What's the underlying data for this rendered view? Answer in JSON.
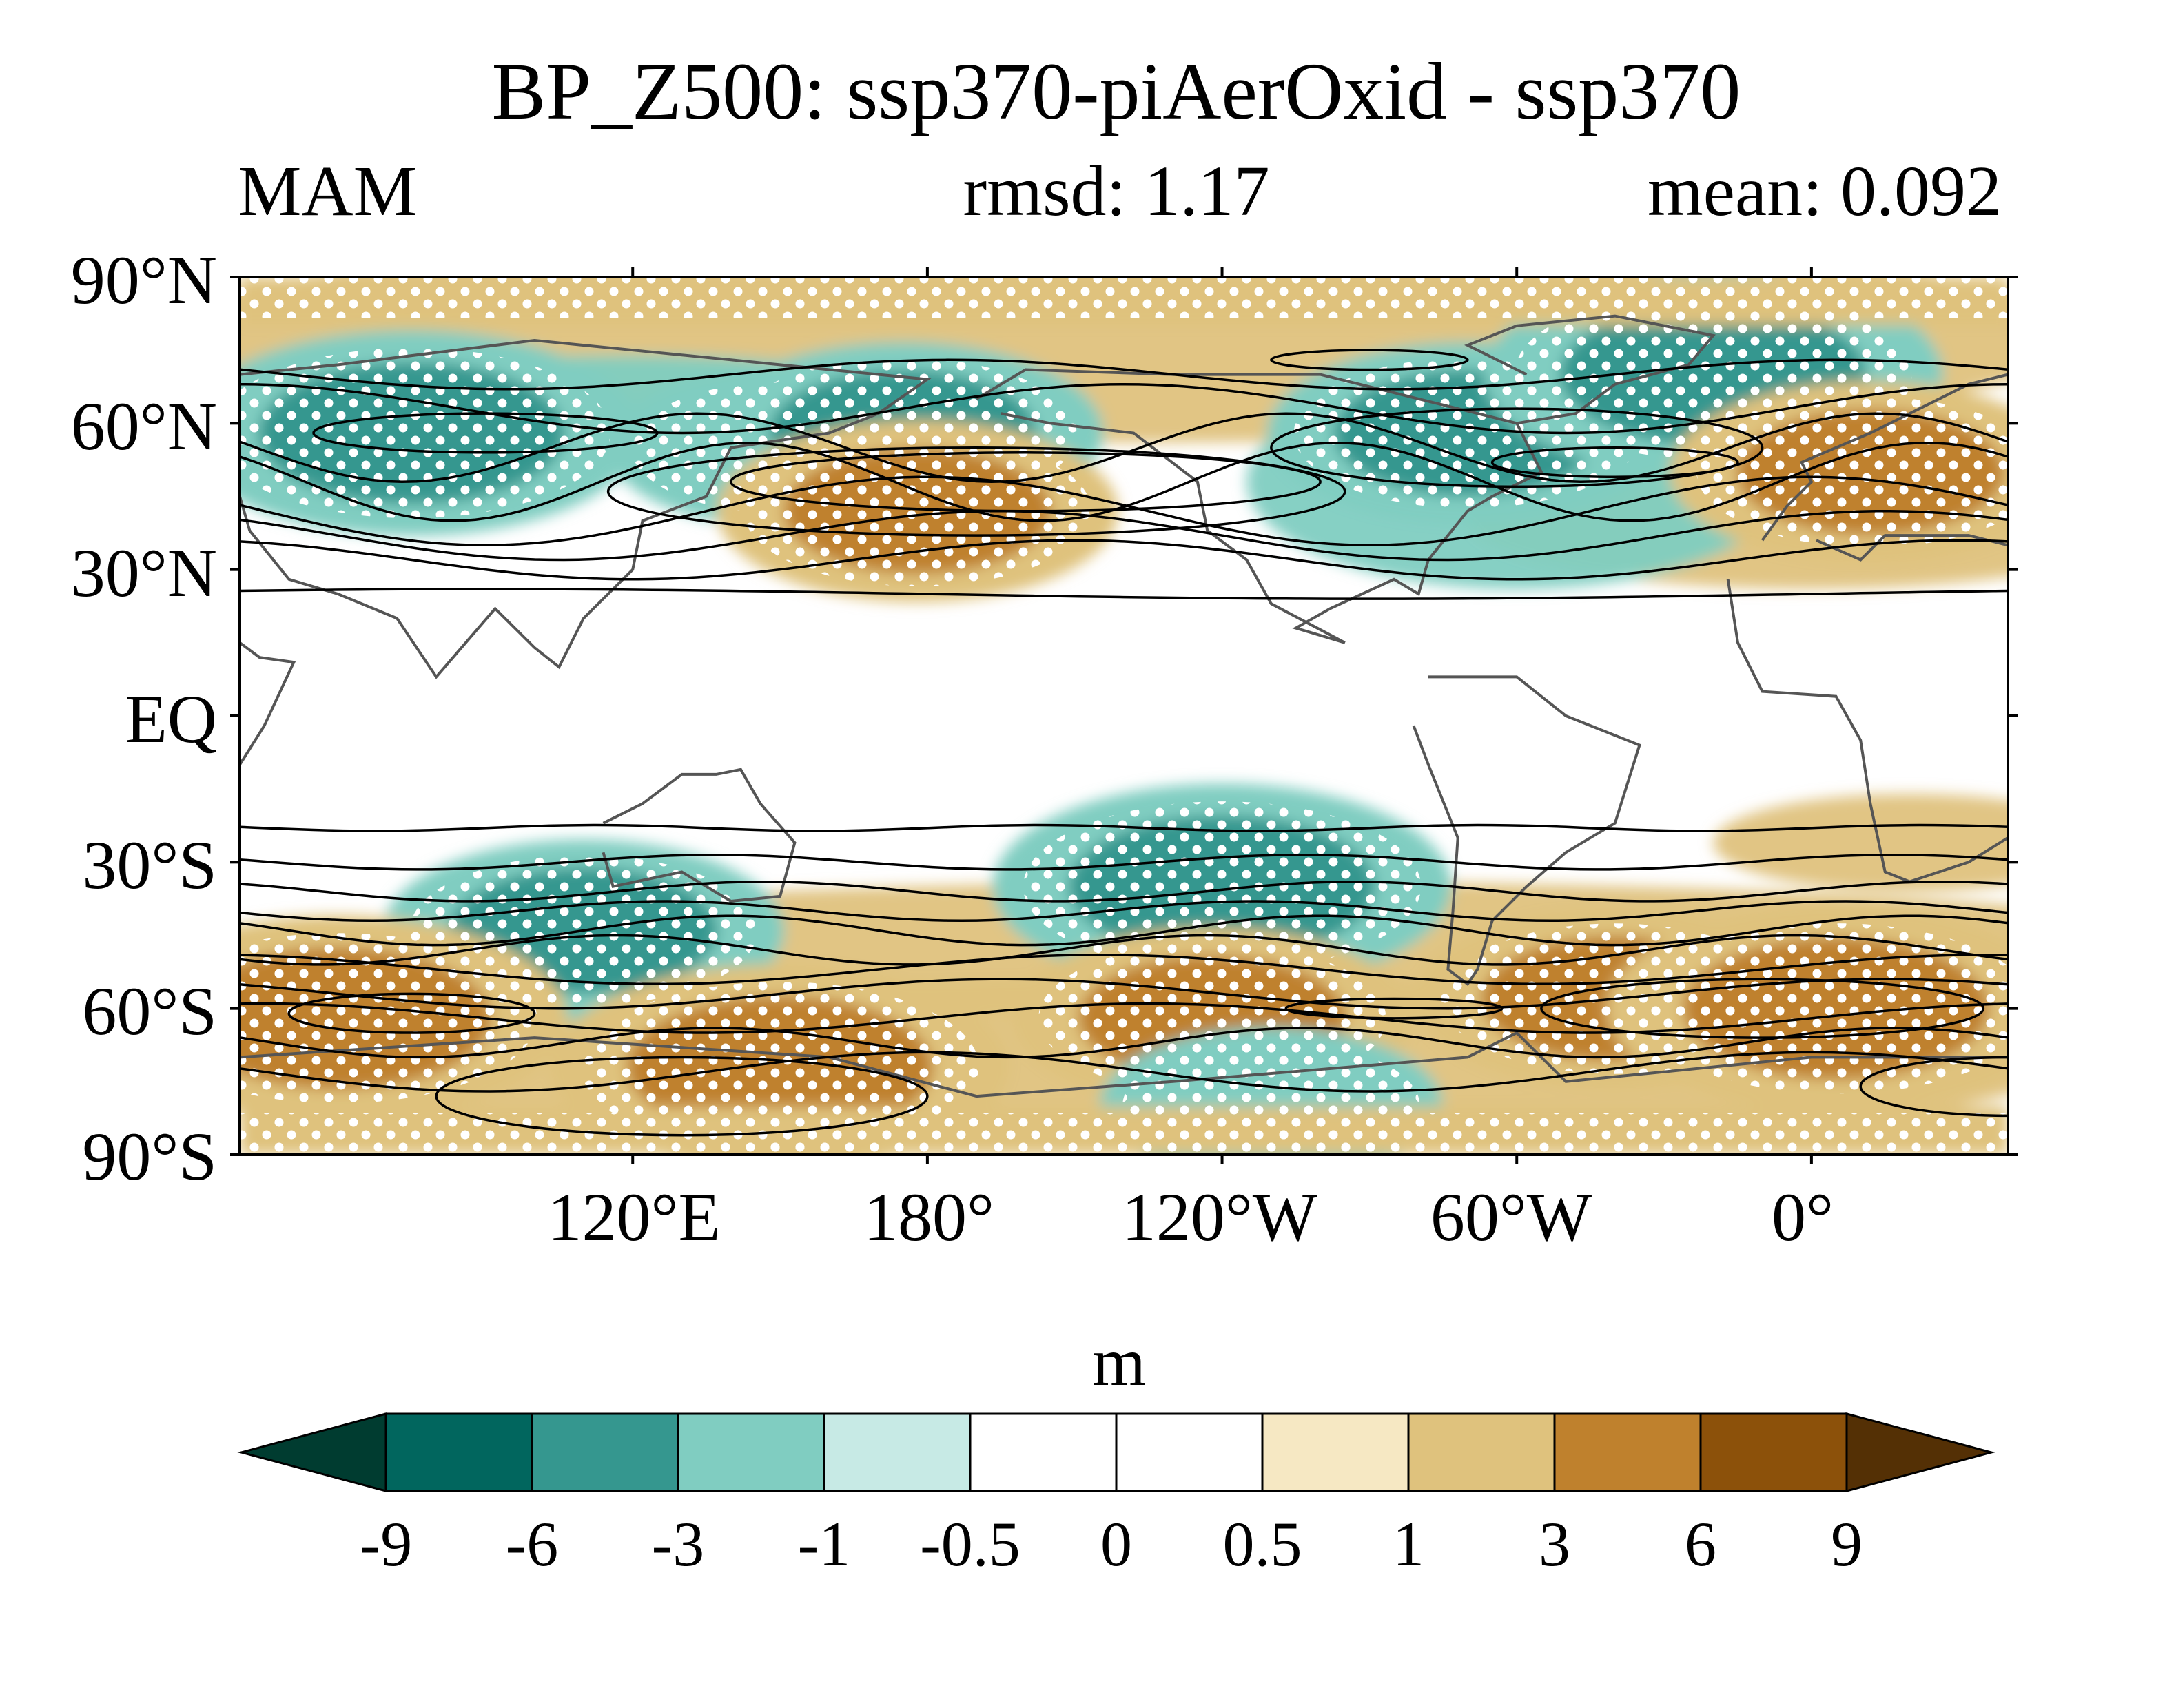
{
  "title": "BP_Z500: ssp370-piAerOxid - ssp370",
  "season": "MAM",
  "rmsd_label": "rmsd: 1.17",
  "mean_label": "mean: 0.092",
  "lat_labels": [
    "90°N",
    "60°N",
    "30°N",
    "EQ",
    "30°S",
    "60°S",
    "90°S"
  ],
  "lon_labels": [
    "120°E",
    "180°",
    "120°W",
    "60°W",
    "0°"
  ],
  "colorbar": {
    "unit": "m",
    "levels": [
      "-9",
      "-6",
      "-3",
      "-1",
      "-0.5",
      "0",
      "0.5",
      "1",
      "3",
      "6",
      "9"
    ],
    "colors": [
      "#003c30",
      "#01665e",
      "#35978f",
      "#80cdc1",
      "#c7eae5",
      "#ffffff",
      "#ffffff",
      "#f6e8c3",
      "#dfc27d",
      "#bf812d",
      "#8c510a",
      "#543005"
    ]
  },
  "chart_data": {
    "type": "heatmap",
    "title": "BP_Z500: ssp370-piAerOxid - ssp370",
    "season": "MAM",
    "rmsd": 1.17,
    "mean": 0.092,
    "unit": "m",
    "x_range_deg_east": [
      40,
      400
    ],
    "y_range_deg_north": [
      -90,
      90
    ],
    "anomaly_regions": [
      {
        "center": [
          75,
          58
        ],
        "value": -4
      },
      {
        "center": [
          150,
          55
        ],
        "value": -2
      },
      {
        "center": [
          175,
          58
        ],
        "value": -3
      },
      {
        "center": [
          178,
          42
        ],
        "value": 3
      },
      {
        "center": [
          290,
          58
        ],
        "value": -3
      },
      {
        "center": [
          340,
          70
        ],
        "value": -4
      },
      {
        "center": [
          372,
          50
        ],
        "value": 3
      },
      {
        "center": [
          240,
          -35
        ],
        "value": -4
      },
      {
        "center": [
          110,
          -44
        ],
        "value": -3
      },
      {
        "center": [
          60,
          -62
        ],
        "value": 4
      },
      {
        "center": [
          150,
          -72
        ],
        "value": 4
      },
      {
        "center": [
          238,
          -62
        ],
        "value": 3
      },
      {
        "center": [
          320,
          -58
        ],
        "value": 3
      },
      {
        "center": [
          365,
          -60
        ],
        "value": 4
      },
      {
        "center": [
          250,
          -80
        ],
        "value": -2
      }
    ]
  }
}
